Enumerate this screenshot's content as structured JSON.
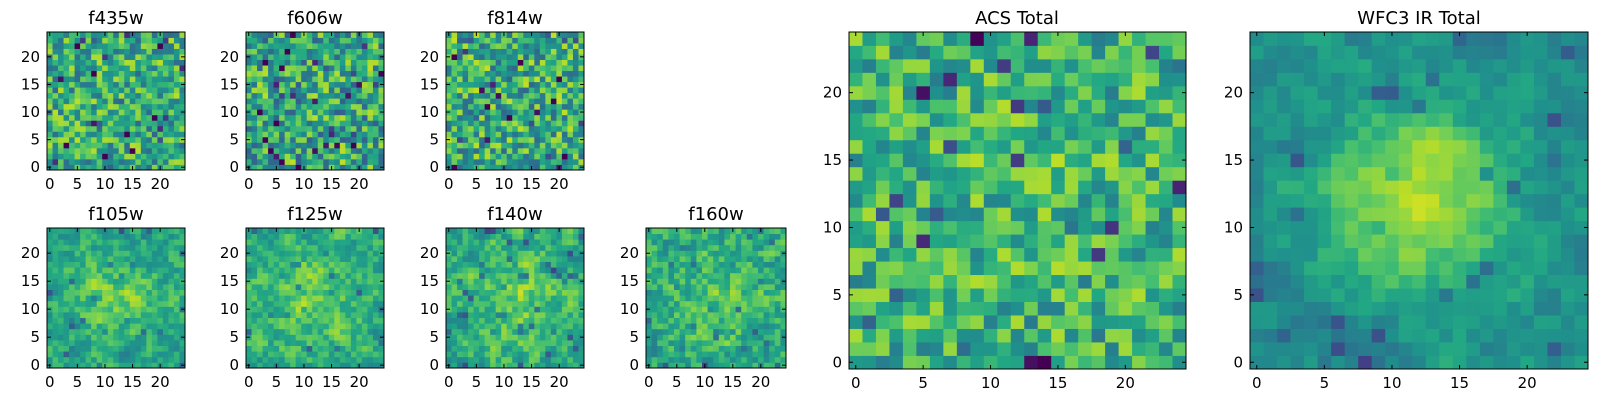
{
  "figure": {
    "background": "#ffffff",
    "colormap": "viridis"
  },
  "chart_data": [
    {
      "id": "f435w",
      "type": "heatmap",
      "title": "f435w",
      "xlabel": "",
      "ylabel": "",
      "grid_size": 25,
      "xlim": [
        -0.5,
        24.5
      ],
      "ylim": [
        -0.5,
        24.5
      ],
      "xticks": [
        0,
        5,
        10,
        15,
        20
      ],
      "yticks": [
        0,
        5,
        10,
        15,
        20
      ],
      "xtick_labels": [
        "0",
        "5",
        "10",
        "15",
        "20"
      ],
      "ytick_labels": [
        "0",
        "5",
        "10",
        "15",
        "20"
      ],
      "field": {
        "seed": 11,
        "mean": 0.62,
        "noise": 0.55,
        "bump": 0.0,
        "bump_x": 12,
        "bump_y": 12,
        "bump_width": 5,
        "smooth": 0.0
      }
    },
    {
      "id": "f606w",
      "type": "heatmap",
      "title": "f606w",
      "xlabel": "",
      "ylabel": "",
      "grid_size": 25,
      "xlim": [
        -0.5,
        24.5
      ],
      "ylim": [
        -0.5,
        24.5
      ],
      "xticks": [
        0,
        5,
        10,
        15,
        20
      ],
      "yticks": [
        0,
        5,
        10,
        15,
        20
      ],
      "xtick_labels": [
        "0",
        "5",
        "10",
        "15",
        "20"
      ],
      "ytick_labels": [
        "0",
        "5",
        "10",
        "15",
        "20"
      ],
      "field": {
        "seed": 23,
        "mean": 0.6,
        "noise": 0.6,
        "bump": 0.0,
        "bump_x": 12,
        "bump_y": 12,
        "bump_width": 5,
        "smooth": 0.0
      }
    },
    {
      "id": "f814w",
      "type": "heatmap",
      "title": "f814w",
      "xlabel": "",
      "ylabel": "",
      "grid_size": 25,
      "xlim": [
        -0.5,
        24.5
      ],
      "ylim": [
        -0.5,
        24.5
      ],
      "xticks": [
        0,
        5,
        10,
        15,
        20
      ],
      "yticks": [
        0,
        5,
        10,
        15,
        20
      ],
      "xtick_labels": [
        "0",
        "5",
        "10",
        "15",
        "20"
      ],
      "ytick_labels": [
        "0",
        "5",
        "10",
        "15",
        "20"
      ],
      "field": {
        "seed": 37,
        "mean": 0.62,
        "noise": 0.58,
        "bump": 0.0,
        "bump_x": 12,
        "bump_y": 12,
        "bump_width": 5,
        "smooth": 0.0
      }
    },
    {
      "id": "f105w",
      "type": "heatmap",
      "title": "f105w",
      "xlabel": "",
      "ylabel": "",
      "grid_size": 25,
      "xlim": [
        -0.5,
        24.5
      ],
      "ylim": [
        -0.5,
        24.5
      ],
      "xticks": [
        0,
        5,
        10,
        15,
        20
      ],
      "yticks": [
        0,
        5,
        10,
        15,
        20
      ],
      "xtick_labels": [
        "0",
        "5",
        "10",
        "15",
        "20"
      ],
      "ytick_labels": [
        "0",
        "5",
        "10",
        "15",
        "20"
      ],
      "field": {
        "seed": 41,
        "mean": 0.58,
        "noise": 0.5,
        "bump": 0.18,
        "bump_x": 12,
        "bump_y": 12,
        "bump_width": 6,
        "smooth": 0.55
      }
    },
    {
      "id": "f125w",
      "type": "heatmap",
      "title": "f125w",
      "xlabel": "",
      "ylabel": "",
      "grid_size": 25,
      "xlim": [
        -0.5,
        24.5
      ],
      "ylim": [
        -0.5,
        24.5
      ],
      "xticks": [
        0,
        5,
        10,
        15,
        20
      ],
      "yticks": [
        0,
        5,
        10,
        15,
        20
      ],
      "xtick_labels": [
        "0",
        "5",
        "10",
        "15",
        "20"
      ],
      "ytick_labels": [
        "0",
        "5",
        "10",
        "15",
        "20"
      ],
      "field": {
        "seed": 53,
        "mean": 0.62,
        "noise": 0.48,
        "bump": 0.15,
        "bump_x": 12,
        "bump_y": 12,
        "bump_width": 6,
        "smooth": 0.5
      }
    },
    {
      "id": "f140w",
      "type": "heatmap",
      "title": "f140w",
      "xlabel": "",
      "ylabel": "",
      "grid_size": 25,
      "xlim": [
        -0.5,
        24.5
      ],
      "ylim": [
        -0.5,
        24.5
      ],
      "xticks": [
        0,
        5,
        10,
        15,
        20
      ],
      "yticks": [
        0,
        5,
        10,
        15,
        20
      ],
      "xtick_labels": [
        "0",
        "5",
        "10",
        "15",
        "20"
      ],
      "ytick_labels": [
        "0",
        "5",
        "10",
        "15",
        "20"
      ],
      "field": {
        "seed": 67,
        "mean": 0.62,
        "noise": 0.5,
        "bump": 0.16,
        "bump_x": 12,
        "bump_y": 12,
        "bump_width": 6,
        "smooth": 0.5
      }
    },
    {
      "id": "f160w",
      "type": "heatmap",
      "title": "f160w",
      "xlabel": "",
      "ylabel": "",
      "grid_size": 25,
      "xlim": [
        -0.5,
        24.5
      ],
      "ylim": [
        -0.5,
        24.5
      ],
      "xticks": [
        0,
        5,
        10,
        15,
        20
      ],
      "yticks": [
        0,
        5,
        10,
        15,
        20
      ],
      "xtick_labels": [
        "0",
        "5",
        "10",
        "15",
        "20"
      ],
      "ytick_labels": [
        "0",
        "5",
        "10",
        "15",
        "20"
      ],
      "field": {
        "seed": 79,
        "mean": 0.6,
        "noise": 0.52,
        "bump": 0.14,
        "bump_x": 12,
        "bump_y": 11,
        "bump_width": 6,
        "smooth": 0.45
      }
    },
    {
      "id": "acs-total",
      "type": "heatmap",
      "title": "ACS Total",
      "xlabel": "",
      "ylabel": "",
      "grid_size": 25,
      "xlim": [
        -0.5,
        24.5
      ],
      "ylim": [
        -0.5,
        24.5
      ],
      "xticks": [
        0,
        5,
        10,
        15,
        20
      ],
      "yticks": [
        0,
        5,
        10,
        15,
        20
      ],
      "xtick_labels": [
        "0",
        "5",
        "10",
        "15",
        "20"
      ],
      "ytick_labels": [
        "0",
        "5",
        "10",
        "15",
        "20"
      ],
      "field": {
        "seed": 97,
        "mean": 0.64,
        "noise": 0.5,
        "bump": 0.04,
        "bump_x": 13,
        "bump_y": 12,
        "bump_width": 6,
        "smooth": 0.1
      }
    },
    {
      "id": "wfc3-ir-total",
      "type": "heatmap",
      "title": "WFC3 IR Total",
      "xlabel": "",
      "ylabel": "",
      "grid_size": 25,
      "xlim": [
        -0.5,
        24.5
      ],
      "ylim": [
        -0.5,
        24.5
      ],
      "xticks": [
        0,
        5,
        10,
        15,
        20
      ],
      "yticks": [
        0,
        5,
        10,
        15,
        20
      ],
      "xtick_labels": [
        "0",
        "5",
        "10",
        "15",
        "20"
      ],
      "ytick_labels": [
        "0",
        "5",
        "10",
        "15",
        "20"
      ],
      "field": {
        "seed": 113,
        "mean": 0.5,
        "noise": 0.34,
        "bump": 0.42,
        "bump_x": 12,
        "bump_y": 12,
        "bump_width": 4.5,
        "smooth": 0.6
      }
    }
  ]
}
